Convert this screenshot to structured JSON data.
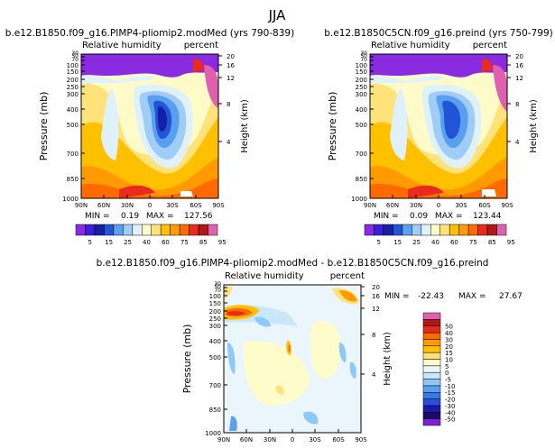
{
  "page_title": "JJA",
  "colors": {
    "scale_a": [
      "#8a2be2",
      "#3a1edc",
      "#1520a8",
      "#2155d6",
      "#5a9ef0",
      "#9fcdf7",
      "#dff1fb",
      "#fffbc8",
      "#ffe27a",
      "#ffc000",
      "#ff9a00",
      "#ff6a00",
      "#ea2a1c",
      "#b01818",
      "#e060b0"
    ],
    "scale_b": [
      "#7a22d2",
      "#1a0b6b",
      "#1a1ab0",
      "#2a4fd6",
      "#3a78e6",
      "#5aa0f0",
      "#8ec8f7",
      "#c8e7fb",
      "#eaf6fb",
      "#fffccc",
      "#ffe37a",
      "#ffc000",
      "#ff9a00",
      "#ff6a00",
      "#e82a1a",
      "#b01818",
      "#e060b0"
    ]
  },
  "chart_data": [
    {
      "type": "heatmap",
      "title": "b.e12.B1850.f09_g16.PIMP4-pliomip2.modMed (yrs 790-839)",
      "left_label": "Relative humidity",
      "right_label": "percent",
      "ylabel": "Pressure (mb)",
      "y2label": "Height (km)",
      "xticks": [
        "90N",
        "60N",
        "30N",
        "0",
        "30S",
        "60S",
        "90S"
      ],
      "yticks": [
        1000,
        850,
        700,
        500,
        400,
        300,
        250,
        200,
        150,
        100,
        70,
        50,
        30
      ],
      "y2ticks": [
        4,
        8,
        12,
        16,
        20
      ],
      "min_label": "MIN =",
      "min_value": "0.19",
      "max_label": "MAX =",
      "max_value": "127.56",
      "levels": [
        5,
        15,
        25,
        40,
        60,
        75,
        85,
        95
      ]
    },
    {
      "type": "heatmap",
      "title": "b.e12.B1850C5CN.f09_g16.preind (yrs 750-799)",
      "left_label": "Relative humidity",
      "right_label": "percent",
      "ylabel": "Pressure (mb)",
      "y2label": "Height (km)",
      "xticks": [
        "90N",
        "60N",
        "30N",
        "0",
        "30S",
        "60S",
        "90S"
      ],
      "yticks": [
        1000,
        850,
        700,
        500,
        400,
        300,
        250,
        200,
        150,
        100,
        70,
        50,
        30
      ],
      "y2ticks": [
        4,
        8,
        12,
        16,
        20
      ],
      "min_label": "MIN =",
      "min_value": "0.09",
      "max_label": "MAX =",
      "max_value": "123.44",
      "levels": [
        5,
        15,
        25,
        40,
        60,
        75,
        85,
        95
      ]
    },
    {
      "type": "heatmap",
      "title": "b.e12.B1850.f09_g16.PIMP4-pliomip2.modMed - b.e12.B1850C5CN.f09_g16.preind",
      "left_label": "Relative humidity",
      "right_label": "percent",
      "ylabel": "Pressure (mb)",
      "y2label": "Height (km)",
      "xticks": [
        "90N",
        "60N",
        "30N",
        "0",
        "30S",
        "60S",
        "90S"
      ],
      "yticks": [
        1000,
        850,
        700,
        500,
        400,
        300,
        250,
        200,
        150,
        100,
        70,
        50,
        30
      ],
      "y2ticks": [
        4,
        8,
        12,
        16,
        20
      ],
      "min_label": "MIN =",
      "min_value": "-22.43",
      "max_label": "MAX =",
      "max_value": "27.67",
      "levels": [
        -50,
        -40,
        -30,
        -20,
        -15,
        -10,
        -5,
        0,
        5,
        10,
        15,
        20,
        30,
        40,
        50
      ]
    }
  ]
}
